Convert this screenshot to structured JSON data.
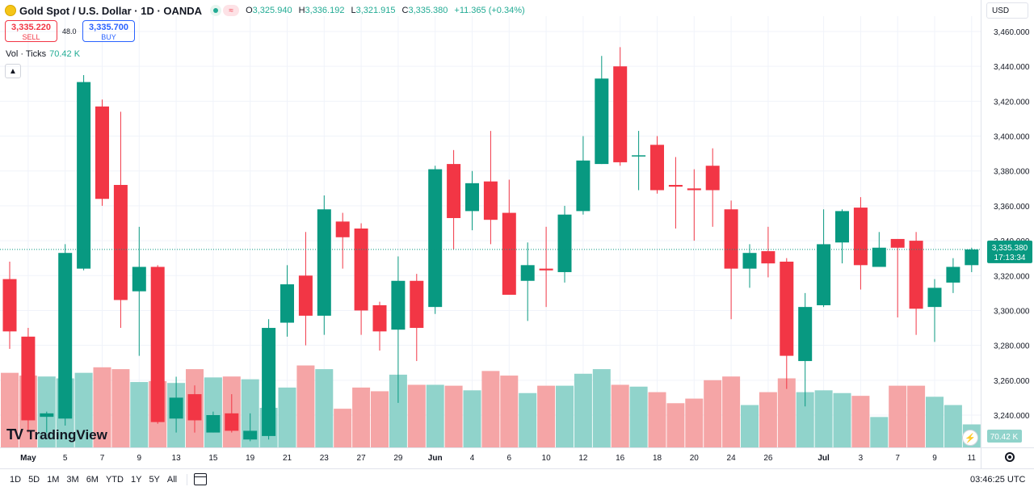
{
  "header": {
    "title": "Gold Spot / U.S. Dollar · 1D · OANDA",
    "ohlc": [
      {
        "label": "O",
        "value": "3,325.940"
      },
      {
        "label": "H",
        "value": "3,336.192"
      },
      {
        "label": "L",
        "value": "3,321.915"
      },
      {
        "label": "C",
        "value": "3,335.380"
      }
    ],
    "change": "+11.365 (+0.34%)"
  },
  "trade": {
    "sell_price": "3,335.220",
    "sell_label": "SELL",
    "spread": "48.0",
    "buy_price": "3,335.700",
    "buy_label": "BUY"
  },
  "volume_legend": {
    "label": "Vol · Ticks",
    "value": "70.42 K"
  },
  "currency": "USD",
  "brand": "TradingView",
  "ranges": [
    "1D",
    "5D",
    "1M",
    "3M",
    "6M",
    "YTD",
    "1Y",
    "5Y",
    "All"
  ],
  "clock": "03:46:25 UTC",
  "colors": {
    "up": "#089981",
    "down": "#f23645",
    "vol_up": "#90d3cb",
    "vol_down": "#f5a5a6",
    "price_line": "#089981"
  },
  "chart_data": {
    "type": "candlestick",
    "ylim": [
      3230,
      3465
    ],
    "ytick_labels": [
      "3,460.000",
      "3,440.000",
      "3,420.000",
      "3,400.000",
      "3,380.000",
      "3,360.000",
      "3,340.000",
      "3,320.000",
      "3,300.000",
      "3,280.000",
      "3,260.000",
      "3,240.000"
    ],
    "ytick_values": [
      3460,
      3440,
      3420,
      3400,
      3380,
      3360,
      3340,
      3320,
      3300,
      3280,
      3260,
      3240
    ],
    "xtick_labels": [
      {
        "i": 1,
        "label": "May"
      },
      {
        "i": 3,
        "label": "5"
      },
      {
        "i": 5,
        "label": "7"
      },
      {
        "i": 7,
        "label": "9"
      },
      {
        "i": 9,
        "label": "13"
      },
      {
        "i": 11,
        "label": "15"
      },
      {
        "i": 13,
        "label": "19"
      },
      {
        "i": 15,
        "label": "21"
      },
      {
        "i": 17,
        "label": "23"
      },
      {
        "i": 19,
        "label": "27"
      },
      {
        "i": 21,
        "label": "29"
      },
      {
        "i": 23,
        "label": "Jun"
      },
      {
        "i": 25,
        "label": "4"
      },
      {
        "i": 27,
        "label": "6"
      },
      {
        "i": 29,
        "label": "10"
      },
      {
        "i": 31,
        "label": "12"
      },
      {
        "i": 33,
        "label": "16"
      },
      {
        "i": 35,
        "label": "18"
      },
      {
        "i": 37,
        "label": "20"
      },
      {
        "i": 39,
        "label": "24"
      },
      {
        "i": 41,
        "label": "26"
      },
      {
        "i": 44,
        "label": "Jul"
      },
      {
        "i": 46,
        "label": "3"
      },
      {
        "i": 48,
        "label": "7"
      },
      {
        "i": 50,
        "label": "9"
      },
      {
        "i": 52,
        "label": "11"
      }
    ],
    "last_price_label": "3,335.380",
    "countdown_label": "17:13:34",
    "last_volume_label": "70.42 K",
    "candles": [
      {
        "o": 3318,
        "h": 3328,
        "l": 3278,
        "c": 3288
      },
      {
        "o": 3285,
        "h": 3290,
        "l": 3230,
        "c": 3237
      },
      {
        "o": 3239,
        "h": 3242,
        "l": 3230,
        "c": 3241
      },
      {
        "o": 3238,
        "h": 3338,
        "l": 3234,
        "c": 3333
      },
      {
        "o": 3324,
        "h": 3435,
        "l": 3323,
        "c": 3431
      },
      {
        "o": 3417,
        "h": 3421,
        "l": 3360,
        "c": 3364
      },
      {
        "o": 3372,
        "h": 3414,
        "l": 3290,
        "c": 3306
      },
      {
        "o": 3311,
        "h": 3348,
        "l": 3274,
        "c": 3325
      },
      {
        "o": 3325,
        "h": 3326,
        "l": 3235,
        "c": 3236
      },
      {
        "o": 3238,
        "h": 3262,
        "l": 3230,
        "c": 3250
      },
      {
        "o": 3252,
        "h": 3257,
        "l": 3230,
        "c": 3237
      },
      {
        "o": 3230,
        "h": 3242,
        "l": 3230,
        "c": 3240
      },
      {
        "o": 3241,
        "h": 3252,
        "l": 3230,
        "c": 3231
      },
      {
        "o": 3226,
        "h": 3241,
        "l": 3225,
        "c": 3231
      },
      {
        "o": 3228,
        "h": 3295,
        "l": 3226,
        "c": 3290
      },
      {
        "o": 3293,
        "h": 3326,
        "l": 3285,
        "c": 3315
      },
      {
        "o": 3320,
        "h": 3345,
        "l": 3280,
        "c": 3297
      },
      {
        "o": 3297,
        "h": 3366,
        "l": 3286,
        "c": 3358
      },
      {
        "o": 3351,
        "h": 3356,
        "l": 3324,
        "c": 3342
      },
      {
        "o": 3347,
        "h": 3350,
        "l": 3286,
        "c": 3300
      },
      {
        "o": 3303,
        "h": 3305,
        "l": 3277,
        "c": 3288
      },
      {
        "o": 3289,
        "h": 3331,
        "l": 3247,
        "c": 3317
      },
      {
        "o": 3317,
        "h": 3321,
        "l": 3271,
        "c": 3290
      },
      {
        "o": 3302,
        "h": 3383,
        "l": 3298,
        "c": 3381
      },
      {
        "o": 3384,
        "h": 3392,
        "l": 3335,
        "c": 3353
      },
      {
        "o": 3357,
        "h": 3380,
        "l": 3346,
        "c": 3373
      },
      {
        "o": 3374,
        "h": 3403,
        "l": 3338,
        "c": 3352
      },
      {
        "o": 3356,
        "h": 3375,
        "l": 3311,
        "c": 3309
      },
      {
        "o": 3317,
        "h": 3339,
        "l": 3294,
        "c": 3326
      },
      {
        "o": 3324,
        "h": 3348,
        "l": 3302,
        "c": 3323
      },
      {
        "o": 3322,
        "h": 3360,
        "l": 3316,
        "c": 3355
      },
      {
        "o": 3357,
        "h": 3400,
        "l": 3355,
        "c": 3386
      },
      {
        "o": 3384,
        "h": 3446,
        "l": 3384,
        "c": 3433
      },
      {
        "o": 3440,
        "h": 3451,
        "l": 3383,
        "c": 3385
      },
      {
        "o": 3389,
        "h": 3403,
        "l": 3369,
        "c": 3389
      },
      {
        "o": 3395,
        "h": 3400,
        "l": 3367,
        "c": 3369
      },
      {
        "o": 3372,
        "h": 3388,
        "l": 3347,
        "c": 3371
      },
      {
        "o": 3370,
        "h": 3381,
        "l": 3340,
        "c": 3369
      },
      {
        "o": 3383,
        "h": 3393,
        "l": 3348,
        "c": 3369
      },
      {
        "o": 3358,
        "h": 3363,
        "l": 3295,
        "c": 3324
      },
      {
        "o": 3324,
        "h": 3338,
        "l": 3313,
        "c": 3333
      },
      {
        "o": 3334,
        "h": 3348,
        "l": 3319,
        "c": 3327
      },
      {
        "o": 3328,
        "h": 3330,
        "l": 3255,
        "c": 3274
      },
      {
        "o": 3271,
        "h": 3310,
        "l": 3245,
        "c": 3302
      },
      {
        "o": 3303,
        "h": 3358,
        "l": 3302,
        "c": 3338
      },
      {
        "o": 3339,
        "h": 3358,
        "l": 3327,
        "c": 3357
      },
      {
        "o": 3359,
        "h": 3365,
        "l": 3312,
        "c": 3326
      },
      {
        "o": 3325,
        "h": 3345,
        "l": 3325,
        "c": 3336
      },
      {
        "o": 3341,
        "h": 3341,
        "l": 3296,
        "c": 3336
      },
      {
        "o": 3340,
        "h": 3345,
        "l": 3286,
        "c": 3301
      },
      {
        "o": 3302,
        "h": 3318,
        "l": 3282,
        "c": 3313
      },
      {
        "o": 3316,
        "h": 3330,
        "l": 3310,
        "c": 3325
      },
      {
        "o": 3326,
        "h": 3336,
        "l": 3322,
        "c": 3335
      }
    ],
    "volume_fraction": [
      0.81,
      0.78,
      0.77,
      0.75,
      0.81,
      0.87,
      0.85,
      0.71,
      0.72,
      0.7,
      0.85,
      0.76,
      0.77,
      0.74,
      0.43,
      0.65,
      0.89,
      0.85,
      0.42,
      0.65,
      0.61,
      0.79,
      0.68,
      0.68,
      0.67,
      0.62,
      0.83,
      0.78,
      0.59,
      0.67,
      0.67,
      0.8,
      0.85,
      0.68,
      0.66,
      0.6,
      0.48,
      0.53,
      0.73,
      0.77,
      0.46,
      0.6,
      0.75,
      0.6,
      0.62,
      0.59,
      0.56,
      0.33,
      0.67,
      0.67,
      0.55,
      0.46,
      0.25
    ]
  }
}
